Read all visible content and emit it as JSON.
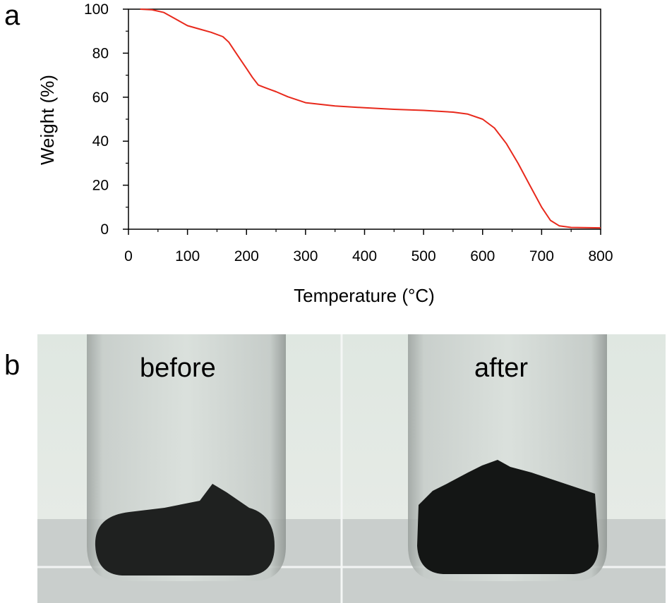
{
  "panels": {
    "a": "a",
    "b": "b"
  },
  "chart_data": {
    "type": "line",
    "xlabel": "Temperature (°C)",
    "ylabel": "Weight (%)",
    "xlim": [
      0,
      800
    ],
    "ylim": [
      0,
      100
    ],
    "x_ticks": [
      0,
      100,
      200,
      300,
      400,
      500,
      600,
      700,
      800
    ],
    "y_ticks": [
      0,
      20,
      40,
      60,
      80,
      100
    ],
    "grid": false,
    "series": [
      {
        "color": "#e8291c",
        "x": [
          20,
          40,
          60,
          80,
          100,
          120,
          140,
          160,
          170,
          180,
          190,
          200,
          210,
          220,
          230,
          250,
          270,
          300,
          350,
          400,
          450,
          500,
          550,
          575,
          600,
          620,
          640,
          660,
          680,
          700,
          715,
          730,
          750,
          800
        ],
        "y": [
          100,
          99.7,
          98.5,
          95.5,
          92.5,
          91,
          89.5,
          87.5,
          85,
          81,
          77,
          73,
          69,
          65.5,
          64.5,
          62.5,
          60.2,
          57.5,
          56,
          55.2,
          54.5,
          54,
          53.2,
          52.3,
          50,
          46,
          39,
          30,
          20,
          10,
          4,
          1.5,
          0.8,
          0.6
        ]
      }
    ]
  },
  "photo": {
    "left_label": "before",
    "right_label": "after"
  }
}
